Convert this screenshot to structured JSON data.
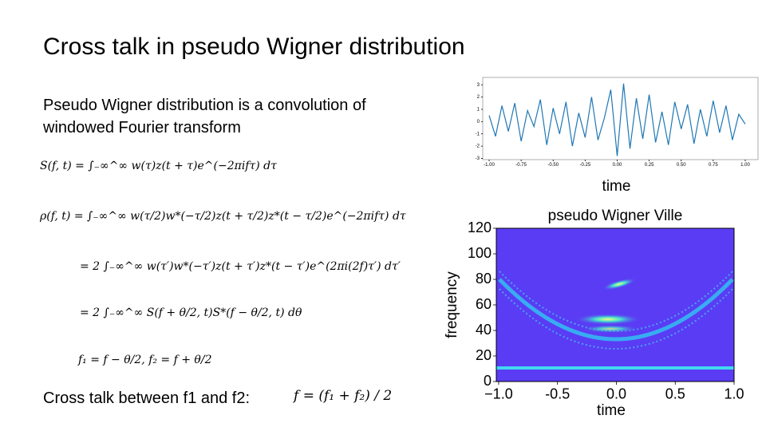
{
  "title": "Cross talk in pseudo Wigner distribution",
  "intro": [
    "Pseudo Wigner distribution is a convolution of",
    "windowed Fourier transform"
  ],
  "equations": [
    "S(f, t) = ∫₋∞^∞ w(τ)z(t + τ)e^(−2πifτ) dτ",
    "ρ(f, t) = ∫₋∞^∞ w(τ/2)w*(−τ/2)z(t + τ/2)z*(t − τ/2)e^(−2πifτ) dτ",
    "= 2 ∫₋∞^∞ w(τ′)w*(−τ′)z(t + τ′)z*(t − τ′)e^(2πi(2f)τ′) dτ′",
    "= 2 ∫₋∞^∞ S(f + θ/2, t)S*(f − θ/2, t) dθ",
    "f₁ = f − θ/2, f₂ = f + θ/2"
  ],
  "cross_talk_label": "Cross talk between f1 and f2:",
  "cross_talk_formula": "f = (f₁ + f₂) / 2",
  "chart_data": [
    {
      "type": "line",
      "xlabel": "time",
      "color": "#1f77b4",
      "x": [
        -1,
        -0.95,
        -0.9,
        -0.85,
        -0.8,
        -0.75,
        -0.7,
        -0.65,
        -0.6,
        -0.55,
        -0.5,
        -0.45,
        -0.4,
        -0.35,
        -0.3,
        -0.25,
        -0.2,
        -0.15,
        -0.1,
        -0.05,
        0,
        0.05,
        0.1,
        0.15,
        0.2,
        0.25,
        0.3,
        0.35,
        0.4,
        0.45,
        0.5,
        0.55,
        0.6,
        0.65,
        0.7,
        0.75,
        0.8,
        0.85,
        0.9,
        0.95,
        1
      ],
      "values": [
        0.5,
        -1.2,
        1.3,
        -0.8,
        1.5,
        -1.6,
        0.9,
        -0.4,
        1.8,
        -1.9,
        1.1,
        -1.0,
        1.6,
        -2.0,
        0.7,
        -1.3,
        2.0,
        -1.5,
        0.3,
        2.6,
        -2.8,
        3.1,
        -2.2,
        1.9,
        -1.4,
        2.2,
        -1.7,
        0.8,
        -1.9,
        1.6,
        -0.6,
        1.4,
        -1.8,
        1.0,
        -1.2,
        1.7,
        -0.9,
        1.3,
        -1.5,
        0.6,
        -0.2
      ],
      "xlim": [
        -1.05,
        1.1
      ],
      "ylim": [
        -3.1,
        3.6
      ],
      "xticks": [
        {
          "value": -1,
          "label": "-1.00"
        },
        -0.75,
        {
          "value": -0.5,
          "label": "-0.50"
        },
        -0.25,
        {
          "value": 0,
          "label": "0.00"
        },
        0.25,
        {
          "value": 0.5,
          "label": "0.50"
        },
        0.75,
        {
          "value": 1,
          "label": "1.00"
        }
      ],
      "yticks": [
        3,
        2,
        1,
        0,
        -1,
        -2,
        -3
      ]
    },
    {
      "type": "heatmap",
      "title": "pseudo Wigner Ville",
      "xlabel": "time",
      "ylabel": "frequency",
      "xlim": [
        -1.02,
        1.0
      ],
      "ylim": [
        0,
        120
      ],
      "xticks": [
        {
          "value": -1,
          "label": "−1.0"
        },
        -0.5,
        {
          "value": 0,
          "label": "0.0"
        },
        0.5,
        {
          "value": 1,
          "label": "1.0"
        }
      ],
      "yticks": [
        0,
        20,
        40,
        60,
        80,
        100,
        120
      ]
    }
  ]
}
